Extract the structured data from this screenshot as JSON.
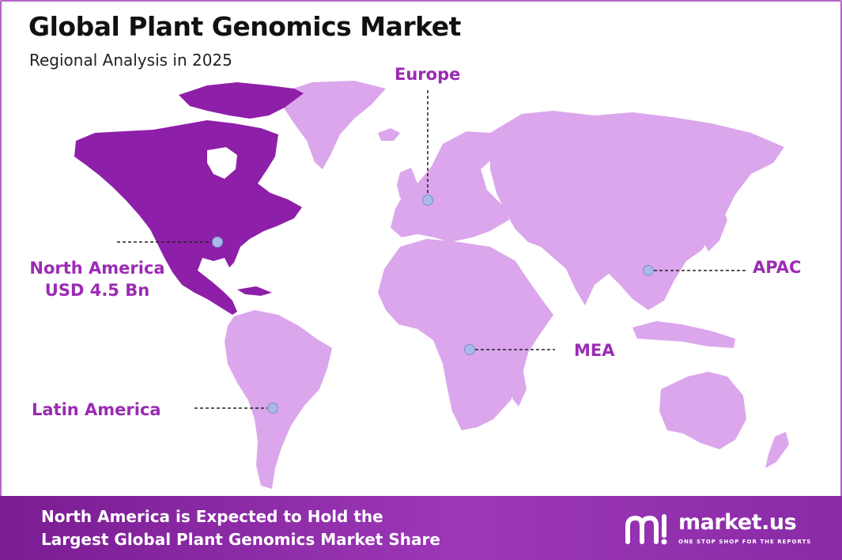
{
  "header": {
    "title": "Global Plant Genomics Market",
    "subtitle": "Regional Analysis in 2025"
  },
  "colors": {
    "highlight_region": "#8e1fa9",
    "other_regions": "#dba6ec",
    "label": "#9b2bb4",
    "marker": "#a9b9e8",
    "footer": "#8a2aa5"
  },
  "regions": {
    "north_america": {
      "label": "North America",
      "value": "USD 4.5 Bn",
      "highlighted": true
    },
    "europe": {
      "label": "Europe"
    },
    "apac": {
      "label": "APAC"
    },
    "mea": {
      "label": "MEA"
    },
    "latin_america": {
      "label": "Latin America"
    }
  },
  "footer": {
    "line1": "North America is Expected to Hold the",
    "line2": "Largest Global Plant Genomics Market Share",
    "brand_name": "market.us",
    "brand_tagline": "ONE STOP SHOP FOR THE REPORTS"
  }
}
